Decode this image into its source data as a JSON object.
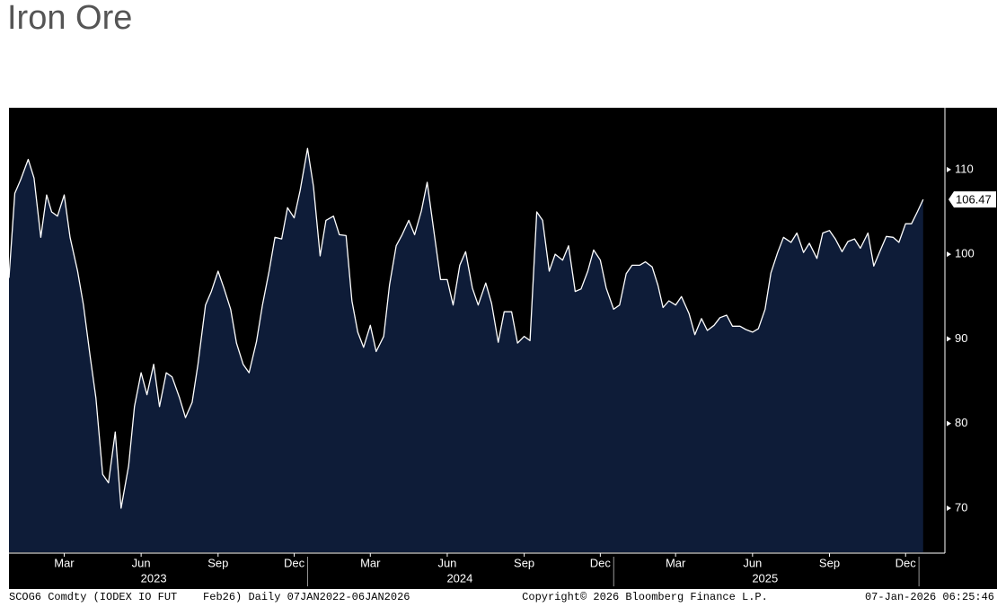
{
  "chart_data": {
    "type": "area",
    "title": "Iron Ore",
    "fill_color": "#0e1c38",
    "line_color": "#ffffff",
    "background": "#000000",
    "x": [
      "2023-01-09",
      "2023-01-16",
      "2023-01-23",
      "2023-02-01",
      "2023-02-08",
      "2023-02-16",
      "2023-02-23",
      "2023-03-01",
      "2023-03-08",
      "2023-03-16",
      "2023-03-23",
      "2023-04-01",
      "2023-04-08",
      "2023-04-16",
      "2023-04-23",
      "2023-05-01",
      "2023-05-08",
      "2023-05-16",
      "2023-05-23",
      "2023-06-01",
      "2023-06-08",
      "2023-06-16",
      "2023-06-23",
      "2023-07-01",
      "2023-07-08",
      "2023-07-16",
      "2023-07-23",
      "2023-08-01",
      "2023-08-08",
      "2023-08-16",
      "2023-08-23",
      "2023-09-01",
      "2023-09-08",
      "2023-09-16",
      "2023-09-23",
      "2023-10-01",
      "2023-10-08",
      "2023-10-16",
      "2023-10-23",
      "2023-11-01",
      "2023-11-08",
      "2023-11-16",
      "2023-11-23",
      "2023-12-01",
      "2023-12-08",
      "2023-12-16",
      "2023-12-23",
      "2024-01-01",
      "2024-01-08",
      "2024-01-16",
      "2024-01-23",
      "2024-02-01",
      "2024-02-08",
      "2024-02-16",
      "2024-02-23",
      "2024-03-01",
      "2024-03-08",
      "2024-03-16",
      "2024-03-23",
      "2024-04-01",
      "2024-04-08",
      "2024-04-16",
      "2024-04-23",
      "2024-05-01",
      "2024-05-08",
      "2024-05-16",
      "2024-05-23",
      "2024-06-01",
      "2024-06-08",
      "2024-06-16",
      "2024-06-23",
      "2024-07-01",
      "2024-07-08",
      "2024-07-16",
      "2024-07-23",
      "2024-08-01",
      "2024-08-08",
      "2024-08-16",
      "2024-08-23",
      "2024-09-01",
      "2024-09-08",
      "2024-09-16",
      "2024-09-23",
      "2024-10-01",
      "2024-10-08",
      "2024-10-16",
      "2024-10-23",
      "2024-11-01",
      "2024-11-08",
      "2024-11-16",
      "2024-11-23",
      "2024-12-01",
      "2024-12-08",
      "2024-12-16",
      "2024-12-23",
      "2025-01-01",
      "2025-01-08",
      "2025-01-16",
      "2025-01-23",
      "2025-02-01",
      "2025-02-08",
      "2025-02-16",
      "2025-02-23",
      "2025-03-01",
      "2025-03-08",
      "2025-03-16",
      "2025-03-23",
      "2025-04-01",
      "2025-04-08",
      "2025-04-16",
      "2025-04-23",
      "2025-05-01",
      "2025-05-08",
      "2025-05-16",
      "2025-05-23",
      "2025-06-01",
      "2025-06-08",
      "2025-06-16",
      "2025-06-23",
      "2025-07-01",
      "2025-07-08",
      "2025-07-16",
      "2025-07-23",
      "2025-08-01",
      "2025-08-08",
      "2025-08-16",
      "2025-08-23",
      "2025-09-01",
      "2025-09-08",
      "2025-09-16",
      "2025-09-23",
      "2025-10-01",
      "2025-10-08",
      "2025-10-16",
      "2025-10-23",
      "2025-11-01",
      "2025-11-08",
      "2025-11-16",
      "2025-11-23",
      "2025-12-01",
      "2025-12-08",
      "2025-12-16",
      "2025-12-23",
      "2025-12-30",
      "2026-01-06"
    ],
    "values": [
      97.2,
      107.2,
      108.8,
      111.2,
      109,
      102,
      107,
      105,
      104.5,
      107,
      102,
      98,
      94,
      88,
      83,
      74,
      73,
      79,
      70,
      75,
      82,
      86,
      83.4,
      87,
      82,
      86,
      85.5,
      83,
      80.7,
      82.5,
      87,
      94,
      95.6,
      98,
      96,
      93.5,
      89.5,
      87,
      86,
      89.7,
      94,
      98,
      102,
      101.8,
      105.5,
      104.3,
      107.5,
      112.5,
      108,
      99.8,
      104,
      104.5,
      102.3,
      102.2,
      94.5,
      90.8,
      89,
      91.6,
      88.5,
      90.3,
      96.4,
      101,
      102.3,
      104,
      102.3,
      105.1,
      108.5,
      102,
      97,
      97,
      94,
      98.7,
      100.3,
      96,
      94,
      96.6,
      94.2,
      89.6,
      93.2,
      93.2,
      89.5,
      90.3,
      89.8,
      105,
      104,
      98,
      100,
      99.3,
      101,
      95.6,
      95.9,
      98,
      100.5,
      99.3,
      96,
      93.5,
      94,
      97.7,
      98.7,
      98.7,
      99.1,
      98.5,
      96.3,
      93.7,
      94.5,
      94,
      95,
      93,
      90.5,
      92.4,
      91,
      91.6,
      92.5,
      92.8,
      91.5,
      91.5,
      91.1,
      90.8,
      91.2,
      93.5,
      97.8,
      100.2,
      102,
      101.4,
      102.5,
      100.2,
      101.3,
      99.5,
      102.5,
      102.8,
      101.8,
      100.3,
      101.5,
      101.8,
      100.7,
      102.5,
      98.6,
      100.5,
      102.1,
      102,
      101.4,
      103.6,
      103.6,
      105,
      106.47
    ],
    "xlim": [
      "2023-01-09",
      "2026-02-01"
    ],
    "ylim": [
      64.8,
      117.3
    ],
    "yticks": [
      70,
      80,
      90,
      100,
      110
    ],
    "xticks": [
      {
        "value": "2023-03-16",
        "label": "Mar"
      },
      {
        "value": "2023-06-16",
        "label": "Jun"
      },
      {
        "value": "2023-09-16",
        "label": "Sep"
      },
      {
        "value": "2023-12-16",
        "label": "Dec"
      },
      {
        "value": "2024-03-16",
        "label": "Mar"
      },
      {
        "value": "2024-06-16",
        "label": "Jun"
      },
      {
        "value": "2024-09-16",
        "label": "Sep"
      },
      {
        "value": "2024-12-16",
        "label": "Dec"
      },
      {
        "value": "2025-03-16",
        "label": "Mar"
      },
      {
        "value": "2025-06-16",
        "label": "Jun"
      },
      {
        "value": "2025-09-16",
        "label": "Sep"
      },
      {
        "value": "2025-12-16",
        "label": "Dec"
      }
    ],
    "year_labels": [
      {
        "value": "2023-07-01",
        "label": "2023"
      },
      {
        "value": "2024-07-01",
        "label": "2024"
      },
      {
        "value": "2025-07-01",
        "label": "2025"
      }
    ],
    "year_ticks": [
      "2024-01-01",
      "2025-01-01",
      "2026-01-01"
    ]
  },
  "footer": {
    "source": "SCOG6 Comdty (IODEX IO FUT    Feb26) Daily 07JAN2022-06JAN2026",
    "copyright": "Copyright© 2026 Bloomberg Finance L.P.",
    "timestamp": "07-Jan-2026 06:25:46"
  }
}
